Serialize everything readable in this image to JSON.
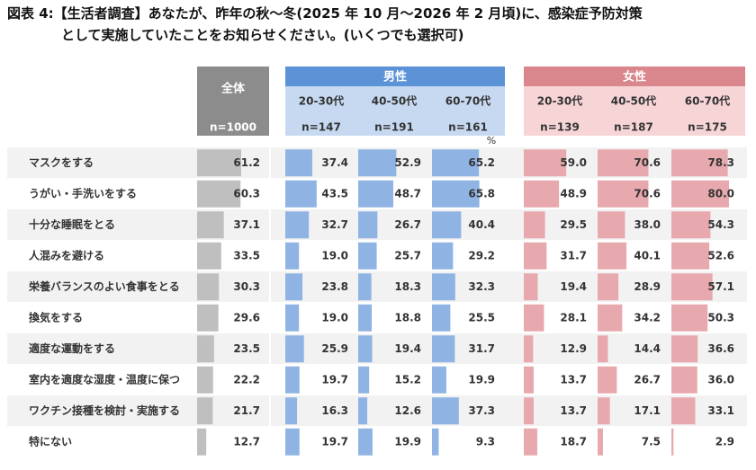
{
  "title": {
    "line1": "図表 4:【生活者調査】あなたが、昨年の秋～冬(2025 年 10 月～2026 年 2 月頃)に、感染症予防対策",
    "line2": "として実施していたことをお知らせください。(いくつでも選択可)"
  },
  "unit": "%",
  "colors": {
    "total_header": "#8c8c8c",
    "total_bar": "#bfbfbf",
    "male_header": "#5b93d6",
    "male_sub": "#c6d9f1",
    "male_bar": "#8fb4e3",
    "female_header": "#d9878c",
    "female_sub": "#f7d5d7",
    "female_bar": "#e8a9ae",
    "row_band": "#f2f2f2"
  },
  "chart_data": {
    "type": "bar",
    "unit": "%",
    "groups": [
      {
        "label": "全体",
        "columns": [
          {
            "key": "total",
            "label": "",
            "n": "n=1000"
          }
        ]
      },
      {
        "label": "男性",
        "columns": [
          {
            "key": "m2030",
            "label": "20-30代",
            "n": "n=147"
          },
          {
            "key": "m4050",
            "label": "40-50代",
            "n": "n=191"
          },
          {
            "key": "m6070",
            "label": "60-70代",
            "n": "n=161"
          }
        ]
      },
      {
        "label": "女性",
        "columns": [
          {
            "key": "f2030",
            "label": "20-30代",
            "n": "n=139"
          },
          {
            "key": "f4050",
            "label": "40-50代",
            "n": "n=187"
          },
          {
            "key": "f6070",
            "label": "60-70代",
            "n": "n=175"
          }
        ]
      }
    ],
    "categories": [
      "マスクをする",
      "うがい・手洗いをする",
      "十分な睡眠をとる",
      "人混みを避ける",
      "栄養バランスのよい食事をとる",
      "換気をする",
      "適度な運動をする",
      "室内を適度な湿度・温度に保つ",
      "ワクチン接種を検討・実施する",
      "特にない"
    ],
    "series": [
      {
        "key": "total",
        "values": [
          61.2,
          60.3,
          37.1,
          33.5,
          30.3,
          29.6,
          23.5,
          22.2,
          21.7,
          12.7
        ]
      },
      {
        "key": "m2030",
        "values": [
          37.4,
          43.5,
          32.7,
          19.0,
          23.8,
          19.0,
          25.9,
          19.7,
          16.3,
          19.7
        ]
      },
      {
        "key": "m4050",
        "values": [
          52.9,
          48.7,
          26.7,
          25.7,
          18.3,
          18.8,
          19.4,
          15.2,
          12.6,
          19.9
        ]
      },
      {
        "key": "m6070",
        "values": [
          65.2,
          65.8,
          40.4,
          29.2,
          32.3,
          25.5,
          31.7,
          19.9,
          37.3,
          9.3
        ]
      },
      {
        "key": "f2030",
        "values": [
          59.0,
          48.9,
          29.5,
          31.7,
          19.4,
          28.1,
          12.9,
          13.7,
          13.7,
          18.7
        ]
      },
      {
        "key": "f4050",
        "values": [
          70.6,
          70.6,
          38.0,
          40.1,
          28.9,
          34.2,
          14.4,
          26.7,
          17.1,
          7.5
        ]
      },
      {
        "key": "f6070",
        "values": [
          78.3,
          80.0,
          54.3,
          52.6,
          57.1,
          50.3,
          36.6,
          36.0,
          33.1,
          2.9
        ]
      }
    ]
  }
}
